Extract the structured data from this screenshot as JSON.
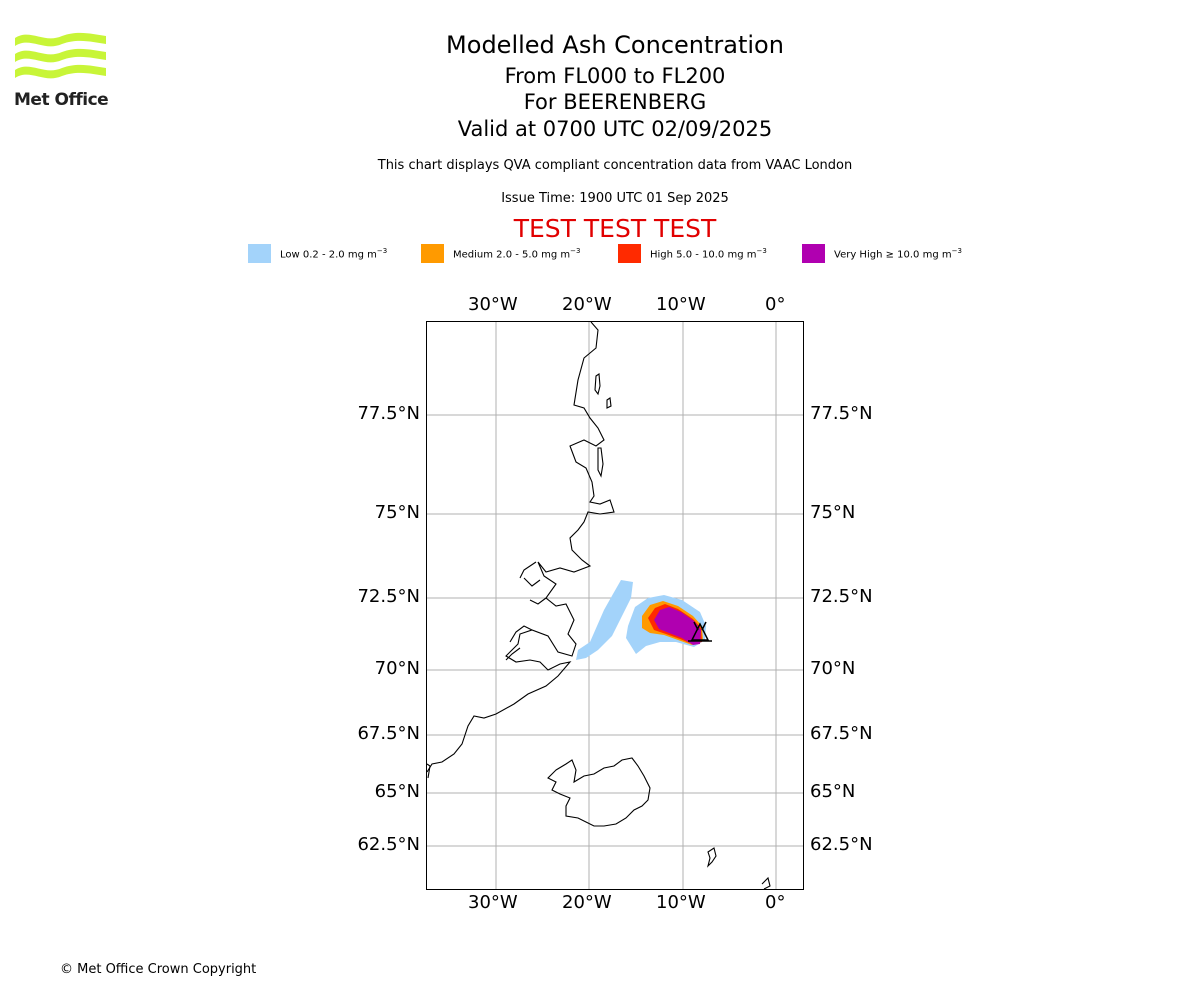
{
  "logo": {
    "text": "Met Office",
    "color": "#c8f538"
  },
  "header": {
    "title": "Modelled Ash Concentration",
    "level_range": "From FL000 to FL200",
    "volcano": "For BEERENBERG",
    "valid": "Valid at 0700 UTC 02/09/2025",
    "note": "This chart displays QVA compliant concentration data from VAAC London",
    "issue_time": "Issue Time: 1900 UTC 01 Sep 2025",
    "test_banner": "TEST TEST TEST"
  },
  "legend": [
    {
      "label": "Low 0.2 - 2.0 mg m",
      "color": "#a3d3fa"
    },
    {
      "label": "Medium 2.0 - 5.0 mg m",
      "color": "#ff9a00"
    },
    {
      "label": "High 5.0 - 10.0 mg m",
      "color": "#ff2a00"
    },
    {
      "label": "Very High ≥ 10.0 mg m",
      "color": "#b000b0"
    }
  ],
  "legend_unit_exp": "−3",
  "map": {
    "lon_labels": [
      "30°W",
      "20°W",
      "10°W",
      "0°"
    ],
    "lat_labels": [
      "77.5°N",
      "75°N",
      "72.5°N",
      "70°N",
      "67.5°N",
      "65°N",
      "62.5°N"
    ],
    "volcano_marker": "volcano-icon"
  },
  "footer": {
    "copyright": "© Met Office Crown Copyright"
  }
}
